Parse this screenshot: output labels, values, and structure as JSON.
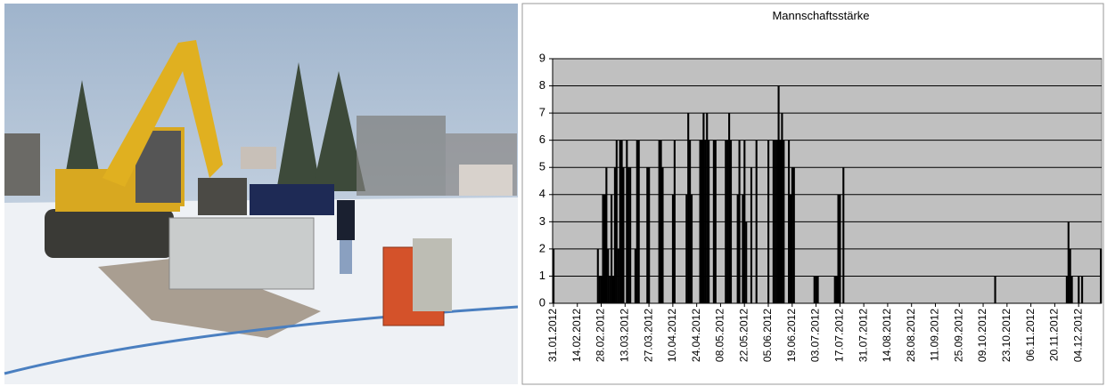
{
  "chart_data": {
    "type": "bar",
    "title": "Mannschaftsstärke",
    "categories": [
      "31.01.2012",
      null,
      null,
      null,
      null,
      null,
      null,
      null,
      null,
      null,
      null,
      null,
      null,
      null,
      "14.02.2012",
      null,
      null,
      null,
      null,
      null,
      null,
      null,
      null,
      null,
      null,
      null,
      null,
      null,
      "28.02.2012",
      null,
      null,
      null,
      null,
      null,
      null,
      null,
      null,
      null,
      null,
      null,
      null,
      null,
      "13.03.2012",
      null,
      null,
      null,
      null,
      null,
      null,
      null,
      null,
      null,
      null,
      null,
      null,
      null,
      "27.03.2012",
      null,
      null,
      null,
      null,
      null,
      null,
      null,
      null,
      null,
      null,
      null,
      null,
      null,
      "10.04.2012",
      null,
      null,
      null,
      null,
      null,
      null,
      null,
      null,
      null,
      null,
      null,
      null,
      null,
      "24.04.2012",
      null,
      null,
      null,
      null,
      null,
      null,
      null,
      null,
      null,
      null,
      null,
      null,
      null,
      "08.05.2012",
      null,
      null,
      null,
      null,
      null,
      null,
      null,
      null,
      null,
      null,
      null,
      null,
      null,
      "22.05.2012",
      null,
      null,
      null,
      null,
      null,
      null,
      null,
      null,
      null,
      null,
      null,
      null,
      null,
      "05.06.2012",
      null,
      null,
      null,
      null,
      null,
      null,
      null,
      null,
      null,
      null,
      null,
      null,
      null,
      "19.06.2012",
      null,
      null,
      null,
      null,
      null,
      null,
      null,
      null,
      null,
      null,
      null,
      null,
      null,
      "03.07.2012",
      null,
      null,
      null,
      null,
      null,
      null,
      null,
      null,
      null,
      null,
      null,
      null,
      null,
      "17.07.2012",
      null,
      null,
      null,
      null,
      null,
      null,
      null,
      null,
      null,
      null,
      null,
      null,
      null,
      "31.07.2012",
      null,
      null,
      null,
      null,
      null,
      null,
      null,
      null,
      null,
      null,
      null,
      null,
      null,
      "14.08.2012",
      null,
      null,
      null,
      null,
      null,
      null,
      null,
      null,
      null,
      null,
      null,
      null,
      null,
      "28.08.2012",
      null,
      null,
      null,
      null,
      null,
      null,
      null,
      null,
      null,
      null,
      null,
      null,
      null,
      "11.09.2012",
      null,
      null,
      null,
      null,
      null,
      null,
      null,
      null,
      null,
      null,
      null,
      null,
      null,
      "25.09.2012",
      null,
      null,
      null,
      null,
      null,
      null,
      null,
      null,
      null,
      null,
      null,
      null,
      null,
      "09.10.2012",
      null,
      null,
      null,
      null,
      null,
      null,
      null,
      null,
      null,
      null,
      null,
      null,
      null,
      "23.10.2012",
      null,
      null,
      null,
      null,
      null,
      null,
      null,
      null,
      null,
      null,
      null,
      null,
      null,
      "06.11.2012",
      null,
      null,
      null,
      null,
      null,
      null,
      null,
      null,
      null,
      null,
      null,
      null,
      null,
      "20.11.2012",
      null,
      null,
      null,
      null,
      null,
      null,
      null,
      null,
      null,
      null,
      null,
      null,
      null,
      "04.12.2012",
      null,
      null,
      null,
      null,
      null,
      null,
      null,
      null,
      null,
      null,
      null,
      null,
      null
    ],
    "values": [
      2,
      0,
      0,
      0,
      0,
      0,
      0,
      0,
      0,
      0,
      0,
      0,
      0,
      0,
      0,
      0,
      0,
      0,
      0,
      0,
      0,
      0,
      0,
      0,
      0,
      0,
      2,
      1,
      1,
      4,
      4,
      5,
      2,
      1,
      4,
      1,
      5,
      6,
      2,
      6,
      6,
      5,
      0,
      6,
      5,
      5,
      0,
      0,
      2,
      6,
      6,
      0,
      0,
      0,
      0,
      5,
      5,
      0,
      0,
      0,
      0,
      0,
      6,
      6,
      5,
      0,
      0,
      0,
      0,
      0,
      4,
      6,
      0,
      0,
      0,
      0,
      0,
      0,
      4,
      7,
      6,
      4,
      0,
      0,
      0,
      0,
      6,
      6,
      7,
      6,
      7,
      6,
      0,
      0,
      6,
      6,
      0,
      0,
      0,
      0,
      0,
      6,
      6,
      7,
      6,
      0,
      0,
      0,
      4,
      6,
      0,
      4,
      6,
      3,
      0,
      0,
      5,
      0,
      0,
      6,
      0,
      0,
      0,
      0,
      0,
      0,
      6,
      0,
      0,
      6,
      6,
      6,
      8,
      6,
      7,
      6,
      0,
      0,
      6,
      4,
      5,
      5,
      0,
      0,
      0,
      0,
      0,
      0,
      0,
      0,
      0,
      0,
      0,
      1,
      1,
      1,
      0,
      0,
      0,
      0,
      0,
      0,
      0,
      0,
      0,
      1,
      1,
      4,
      4,
      0,
      5,
      0,
      0,
      0,
      0,
      0,
      0,
      0,
      0,
      0,
      0,
      0,
      0,
      0,
      0,
      0,
      0,
      0,
      0,
      0,
      0,
      0,
      0,
      0,
      0,
      0,
      0,
      0,
      0,
      0,
      0,
      0,
      0,
      0,
      0,
      0,
      0,
      0,
      0,
      0,
      0,
      0,
      0,
      0,
      0,
      0,
      0,
      0,
      0,
      0,
      0,
      0,
      0,
      0,
      0,
      0,
      0,
      0,
      0,
      0,
      0,
      0,
      0,
      0,
      0,
      0,
      0,
      0,
      0,
      0,
      0,
      0,
      0,
      0,
      0,
      0,
      0,
      0,
      0,
      0,
      0,
      0,
      0,
      0,
      0,
      0,
      0,
      0,
      0,
      1,
      0,
      0,
      0,
      0,
      0,
      0,
      0,
      0,
      0,
      0,
      0,
      0,
      0,
      0,
      0,
      0,
      0,
      0,
      0,
      0,
      0,
      0,
      0,
      0,
      0,
      0,
      0,
      0,
      0,
      0,
      0,
      0,
      0,
      0,
      0,
      0,
      0,
      0,
      0,
      0,
      0,
      1,
      3,
      2,
      1,
      0,
      0,
      0,
      1,
      0,
      1,
      0,
      0,
      0,
      0,
      0,
      0,
      0,
      0,
      0,
      0,
      2
    ],
    "color": "#000000",
    "background": "#c0c0c0",
    "ylim": [
      0,
      9
    ],
    "yticks": [
      0,
      1,
      2,
      3,
      4,
      5,
      6,
      7,
      8,
      9
    ],
    "grid": true
  }
}
